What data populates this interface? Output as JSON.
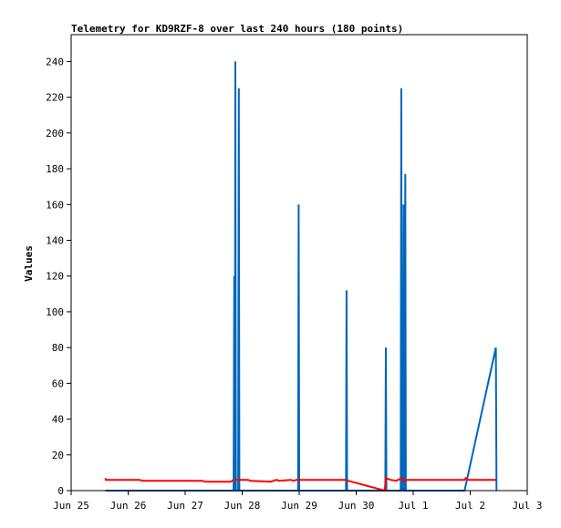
{
  "chart_data": {
    "type": "line",
    "title": "Telemetry for KD9RZF-8 over last 240 hours (180 points)",
    "xlabel": "",
    "ylabel": "Values",
    "x_ticks": [
      "Jun 25",
      "Jun 26",
      "Jun 27",
      "Jun 28",
      "Jun 29",
      "Jun 30",
      "Jul 1",
      "Jul 2",
      "Jul 3"
    ],
    "xlim": [
      0,
      8
    ],
    "ylim": [
      0,
      255
    ],
    "y_ticks": [
      0,
      20,
      40,
      60,
      80,
      100,
      120,
      140,
      160,
      180,
      200,
      220,
      240
    ],
    "grid": false,
    "legend": "none",
    "series": [
      {
        "color": "#0066bb",
        "points": [
          [
            0.6,
            0
          ],
          [
            2.85,
            0
          ],
          [
            2.86,
            120
          ],
          [
            2.87,
            0
          ],
          [
            2.88,
            240
          ],
          [
            2.89,
            0
          ],
          [
            2.93,
            0
          ],
          [
            2.94,
            225
          ],
          [
            2.95,
            0
          ],
          [
            3.98,
            0
          ],
          [
            3.99,
            160
          ],
          [
            4.0,
            0
          ],
          [
            4.82,
            0
          ],
          [
            4.83,
            112
          ],
          [
            4.84,
            0
          ],
          [
            5.51,
            0
          ],
          [
            5.52,
            80
          ],
          [
            5.53,
            0
          ],
          [
            5.78,
            0
          ],
          [
            5.79,
            225
          ],
          [
            5.8,
            0
          ],
          [
            5.82,
            0
          ],
          [
            5.83,
            160
          ],
          [
            5.84,
            0
          ],
          [
            5.85,
            0
          ],
          [
            5.86,
            177
          ],
          [
            5.87,
            0
          ],
          [
            6.9,
            0
          ],
          [
            7.45,
            80
          ],
          [
            7.46,
            0
          ]
        ]
      },
      {
        "color": "#ff0000",
        "points": [
          [
            0.6,
            7
          ],
          [
            0.61,
            6
          ],
          [
            1.2,
            6
          ],
          [
            1.25,
            5.5
          ],
          [
            2.3,
            5.5
          ],
          [
            2.35,
            5
          ],
          [
            2.8,
            5
          ],
          [
            2.85,
            6
          ],
          [
            3.1,
            6
          ],
          [
            3.15,
            5.5
          ],
          [
            3.5,
            5
          ],
          [
            3.6,
            6
          ],
          [
            3.65,
            5.5
          ],
          [
            3.85,
            6
          ],
          [
            3.9,
            5.5
          ],
          [
            3.95,
            6
          ],
          [
            4.8,
            6
          ],
          [
            5.5,
            0
          ],
          [
            5.52,
            7
          ],
          [
            5.6,
            6
          ],
          [
            5.7,
            5.5
          ],
          [
            5.8,
            7
          ],
          [
            5.82,
            5.5
          ],
          [
            5.9,
            6
          ],
          [
            6.9,
            6
          ],
          [
            6.92,
            7
          ],
          [
            6.95,
            6
          ],
          [
            7.45,
            6
          ]
        ]
      }
    ]
  }
}
